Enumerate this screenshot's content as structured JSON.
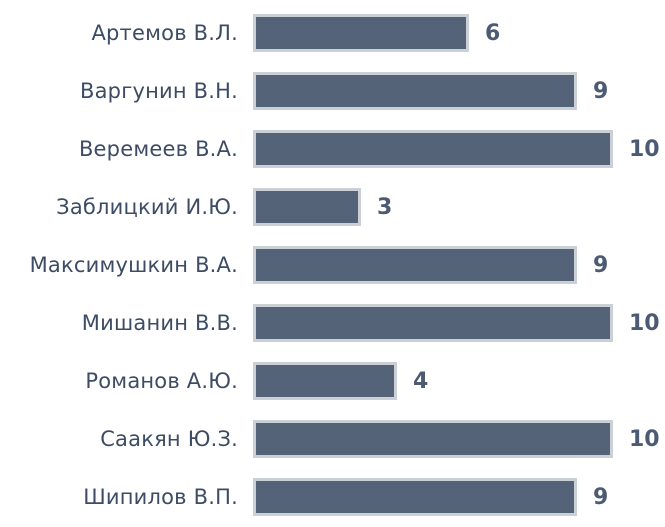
{
  "chart_data": {
    "type": "bar",
    "orientation": "horizontal",
    "title": "",
    "xlabel": "",
    "ylabel": "",
    "categories": [
      "Артемов В.Л.",
      "Варгунин В.Н.",
      "Веремеев В.А.",
      "Заблицкий И.Ю.",
      "Максимушкин В.А.",
      "Мишанин В.В.",
      "Романов А.Ю.",
      "Саакян Ю.З.",
      "Шипилов В.П."
    ],
    "values": [
      6,
      9,
      10,
      3,
      9,
      10,
      4,
      10,
      9
    ],
    "xlim": [
      0,
      10
    ],
    "grid": false,
    "legend": false,
    "data_labels": true,
    "colors": {
      "bar_fill": "#556378",
      "bar_border": "#cbcfd6",
      "category_text": "#3d4c64",
      "value_text": "#4c5b73",
      "background": "#ffffff"
    }
  }
}
